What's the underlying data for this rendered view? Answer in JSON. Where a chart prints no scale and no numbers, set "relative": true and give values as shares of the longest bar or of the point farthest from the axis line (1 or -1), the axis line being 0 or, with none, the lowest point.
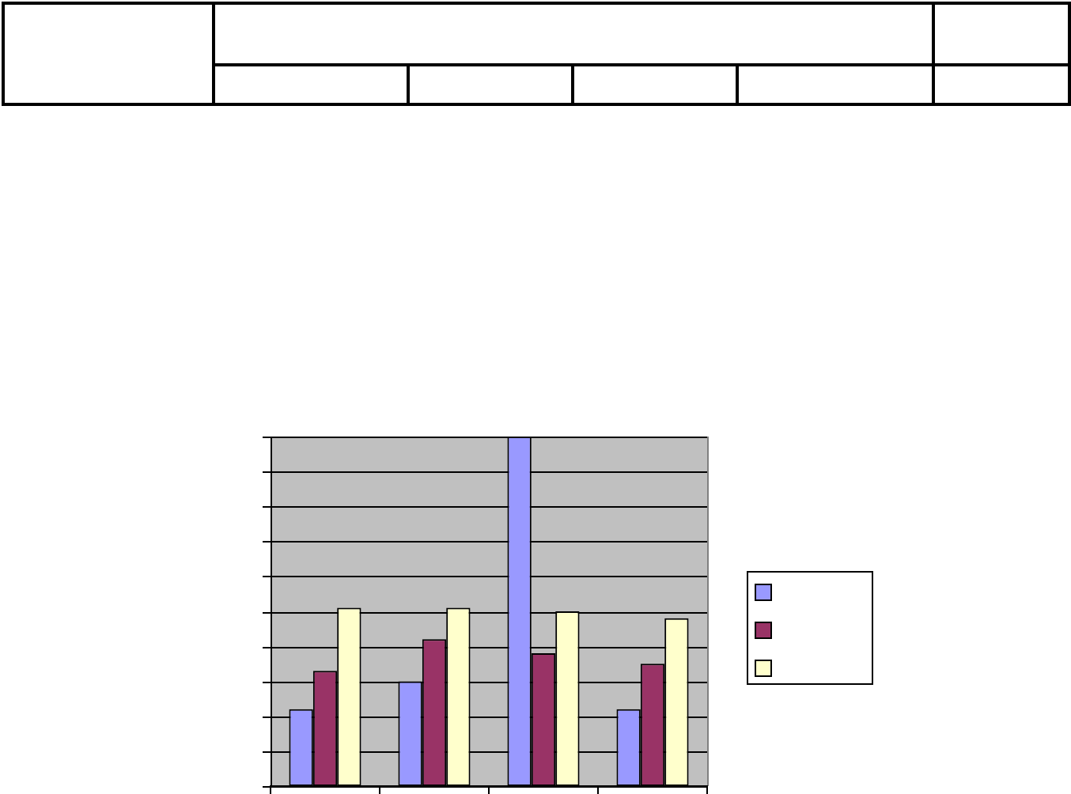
{
  "chart_data": {
    "type": "bar",
    "relative": true,
    "categories": [
      null,
      null,
      null,
      null
    ],
    "series": [
      {
        "color": "#9999ff",
        "values": [
          0.22,
          0.3,
          1,
          0.22
        ]
      },
      {
        "color": "#993366",
        "values": [
          0.33,
          0.42,
          0.38,
          0.35
        ]
      },
      {
        "color": "#ffffcc",
        "values": [
          0.51,
          0.51,
          0.5,
          0.48
        ]
      }
    ],
    "grid": "y",
    "tick_labels": false
  }
}
